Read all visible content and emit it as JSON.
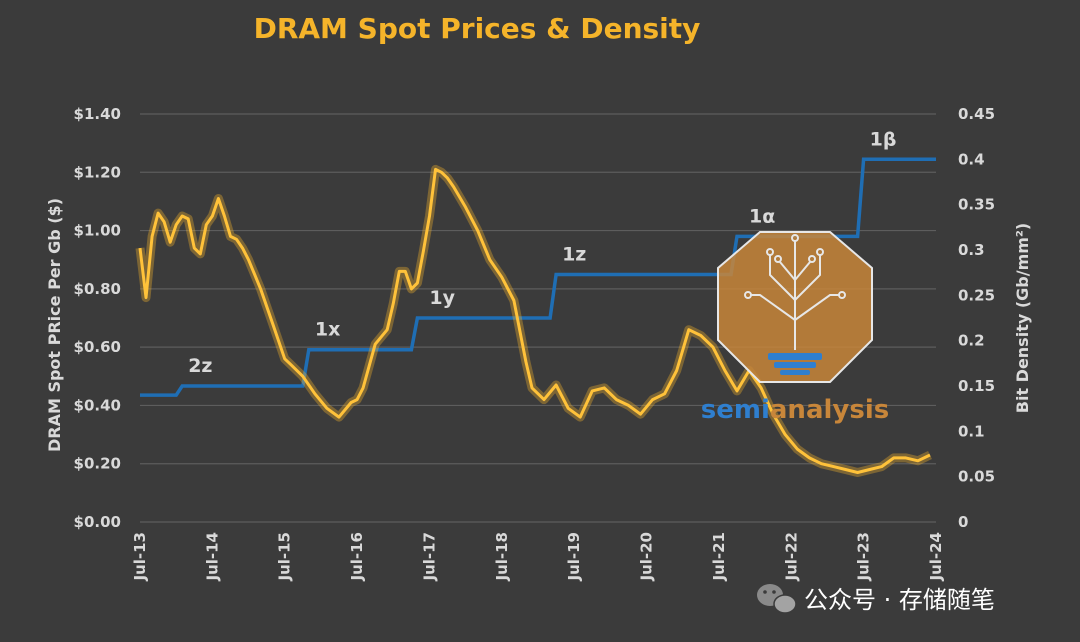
{
  "chart_data": {
    "type": "line",
    "title": "DRAM Spot Prices & Density",
    "ylabel": "DRAM Spot PRice Per Gb ($)",
    "y2label": "Bit Density (Gb/mm²)",
    "ylim": [
      0,
      1.4
    ],
    "y2lim": [
      0,
      0.45
    ],
    "y_ticks": [
      "$0.00",
      "$0.20",
      "$0.40",
      "$0.60",
      "$0.80",
      "$1.00",
      "$1.20",
      "$1.40"
    ],
    "y2_ticks": [
      "0",
      "0.05",
      "0.1",
      "0.15",
      "0.2",
      "0.25",
      "0.3",
      "0.35",
      "0.4",
      "0.45"
    ],
    "x_ticks": [
      "Jul-13",
      "Jul-14",
      "Jul-15",
      "Jul-16",
      "Jul-17",
      "Jul-18",
      "Jul-19",
      "Jul-20",
      "Jul-21",
      "Jul-22",
      "Jul-23",
      "Jul-24"
    ],
    "grid": true,
    "series": [
      {
        "axis": "left",
        "color": "#f5b42a",
        "x": [
          "2013-07",
          "2013-08",
          "2013-09",
          "2013-10",
          "2013-11",
          "2013-12",
          "2014-01",
          "2014-02",
          "2014-03",
          "2014-04",
          "2014-05",
          "2014-06",
          "2014-07",
          "2014-08",
          "2014-09",
          "2014-10",
          "2014-11",
          "2014-12",
          "2015-01",
          "2015-03",
          "2015-05",
          "2015-07",
          "2015-08",
          "2015-10",
          "2015-12",
          "2016-02",
          "2016-04",
          "2016-06",
          "2016-07",
          "2016-08",
          "2016-10",
          "2016-12",
          "2017-01",
          "2017-02",
          "2017-03",
          "2017-04",
          "2017-05",
          "2017-06",
          "2017-07",
          "2017-08",
          "2017-09",
          "2017-10",
          "2017-11",
          "2018-01",
          "2018-03",
          "2018-05",
          "2018-07",
          "2018-09",
          "2018-11",
          "2018-12",
          "2019-02",
          "2019-04",
          "2019-06",
          "2019-08",
          "2019-10",
          "2019-12",
          "2020-02",
          "2020-04",
          "2020-06",
          "2020-08",
          "2020-10",
          "2020-12",
          "2021-02",
          "2021-04",
          "2021-06",
          "2021-08",
          "2021-10",
          "2021-12",
          "2022-02",
          "2022-04",
          "2022-06",
          "2022-08",
          "2022-10",
          "2022-12",
          "2023-02",
          "2023-04",
          "2023-06",
          "2023-08",
          "2023-10",
          "2023-12",
          "2024-02",
          "2024-04",
          "2024-06"
        ],
        "values": [
          0.94,
          0.77,
          0.98,
          1.06,
          1.03,
          0.96,
          1.02,
          1.05,
          1.04,
          0.94,
          0.92,
          1.02,
          1.05,
          1.11,
          1.05,
          0.98,
          0.97,
          0.94,
          0.9,
          0.8,
          0.68,
          0.56,
          0.54,
          0.5,
          0.44,
          0.39,
          0.36,
          0.41,
          0.42,
          0.46,
          0.61,
          0.66,
          0.75,
          0.86,
          0.86,
          0.8,
          0.82,
          0.93,
          1.05,
          1.21,
          1.2,
          1.18,
          1.15,
          1.08,
          1.0,
          0.9,
          0.84,
          0.76,
          0.55,
          0.46,
          0.42,
          0.47,
          0.39,
          0.36,
          0.45,
          0.46,
          0.42,
          0.4,
          0.37,
          0.42,
          0.44,
          0.52,
          0.66,
          0.64,
          0.6,
          0.52,
          0.45,
          0.52,
          0.46,
          0.37,
          0.3,
          0.25,
          0.22,
          0.2,
          0.19,
          0.18,
          0.17,
          0.18,
          0.19,
          0.22,
          0.22,
          0.21,
          0.23
        ]
      },
      {
        "axis": "right",
        "color": "#1f6eb4",
        "step": true,
        "x": [
          "2013-07",
          "2014-01",
          "2014-02",
          "2015-10",
          "2015-11",
          "2017-04",
          "2017-05",
          "2019-03",
          "2019-04",
          "2021-09",
          "2021-10",
          "2023-06",
          "2023-07",
          "2024-07"
        ],
        "values": [
          0.14,
          0.14,
          0.15,
          0.15,
          0.19,
          0.19,
          0.225,
          0.225,
          0.273,
          0.273,
          0.315,
          0.315,
          0.4,
          0.4
        ]
      }
    ],
    "annotations": [
      {
        "text": "2z",
        "x": "2014-02",
        "y2": 0.15
      },
      {
        "text": "1x",
        "x": "2015-11",
        "y2": 0.19
      },
      {
        "text": "1y",
        "x": "2017-06",
        "y2": 0.225
      },
      {
        "text": "1z",
        "x": "2019-04",
        "y2": 0.273
      },
      {
        "text": "1α",
        "x": "2021-11",
        "y2": 0.315
      },
      {
        "text": "1β",
        "x": "2023-07",
        "y2": 0.4
      }
    ],
    "watermark": {
      "brand_part1": "semi",
      "brand_part2": "analysis"
    }
  },
  "footer": {
    "text": "公众号 · 存储随笔",
    "icon": "wechat-icon"
  }
}
